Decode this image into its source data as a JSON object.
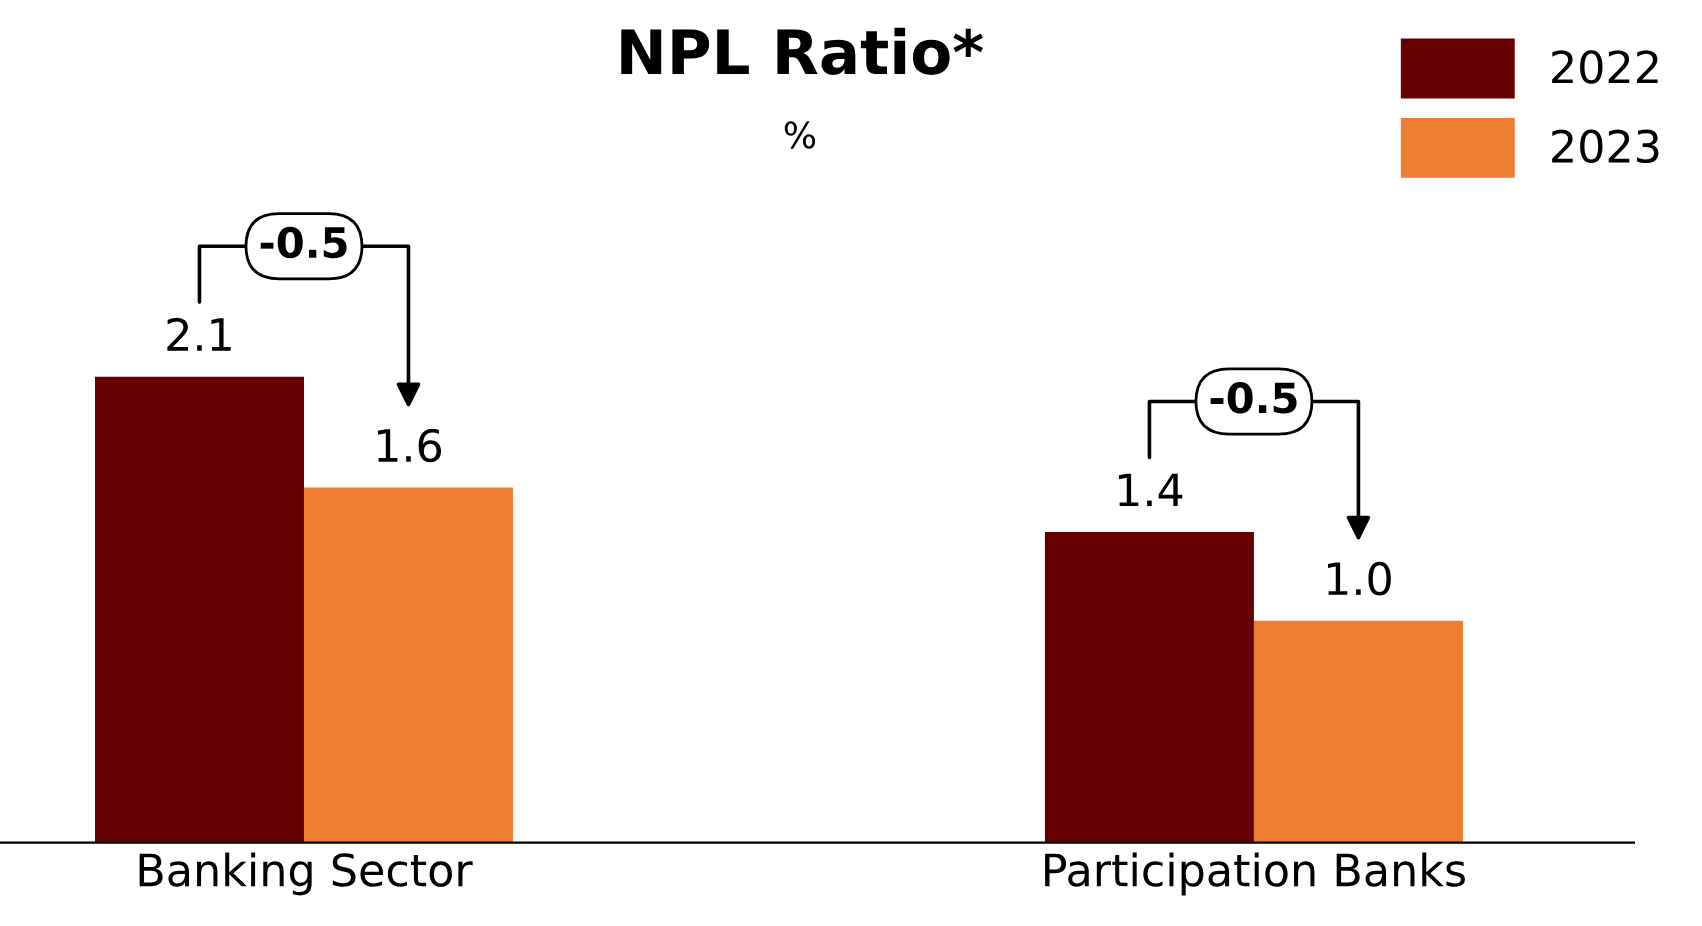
{
  "chart_data": {
    "type": "bar",
    "title": "NPL Ratio*",
    "subtitle": "%",
    "categories": [
      "Banking Sector",
      "Participation Banks"
    ],
    "series": [
      {
        "name": "2022",
        "color": "#660000",
        "values": [
          2.1,
          1.4
        ],
        "value_labels": [
          "2.1",
          "1.4"
        ]
      },
      {
        "name": "2023",
        "color": "#ed7d31",
        "values": [
          1.6,
          1.0
        ],
        "value_labels": [
          "1.6",
          "1.0"
        ]
      }
    ],
    "legend": "top right",
    "grid": false,
    "relative": false,
    "annotations": [
      "-0.5",
      "-0.5"
    ]
  }
}
